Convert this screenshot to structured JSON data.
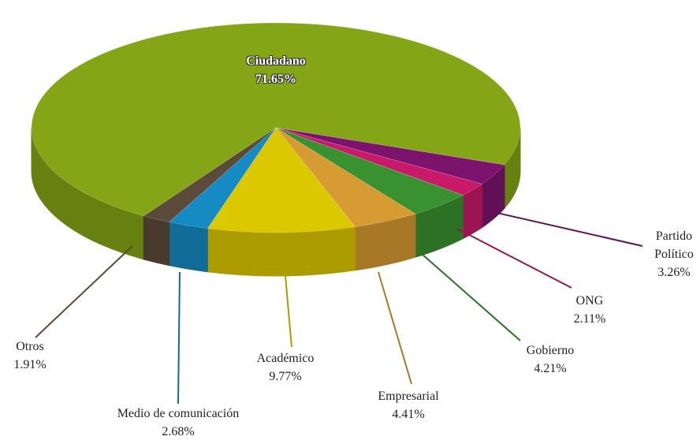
{
  "chart_data": {
    "type": "pie",
    "categories": [
      "Ciudadano",
      "Partido Político",
      "ONG",
      "Gobierno",
      "Empresarial",
      "Académico",
      "Medio de comunicación",
      "Otros"
    ],
    "values": [
      71.65,
      3.26,
      2.11,
      4.21,
      4.41,
      9.77,
      2.68,
      1.91
    ],
    "value_labels": [
      "71.65%",
      "3.26%",
      "2.11%",
      "4.21%",
      "4.41%",
      "9.77%",
      "2.68%",
      "1.91%"
    ],
    "colors": [
      "#84a616",
      "#7c146e",
      "#c81a68",
      "#3a9130",
      "#d69b32",
      "#dcc800",
      "#168ac2",
      "#5c4a3a"
    ]
  }
}
